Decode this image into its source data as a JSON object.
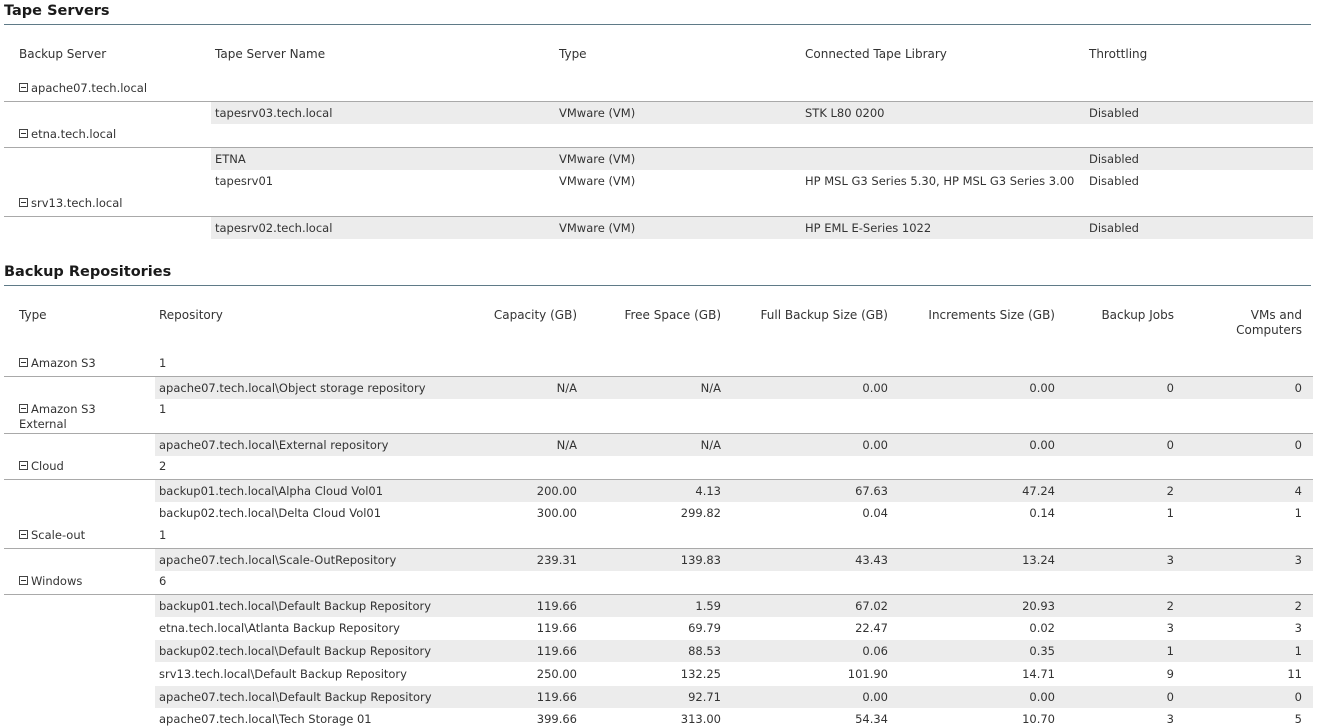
{
  "tape": {
    "title": "Tape Servers",
    "headers": [
      "Backup Server",
      "Tape Server Name",
      "Type",
      "Connected Tape Library",
      "Throttling"
    ],
    "groups": [
      {
        "name": "apache07.tech.local",
        "rows": [
          {
            "name": "tapesrv03.tech.local",
            "type": "VMware (VM)",
            "library": "STK L80 0200",
            "throttling": "Disabled"
          }
        ]
      },
      {
        "name": "etna.tech.local",
        "rows": [
          {
            "name": "ETNA",
            "type": "VMware (VM)",
            "library": "",
            "throttling": "Disabled"
          },
          {
            "name": "tapesrv01",
            "type": "VMware (VM)",
            "library": "HP MSL G3 Series 5.30, HP MSL G3 Series 3.00",
            "throttling": "Disabled"
          }
        ]
      },
      {
        "name": "srv13.tech.local",
        "rows": [
          {
            "name": "tapesrv02.tech.local",
            "type": "VMware (VM)",
            "library": "HP EML E-Series 1022",
            "throttling": "Disabled"
          }
        ]
      }
    ]
  },
  "repos": {
    "title": "Backup Repositories",
    "headers": {
      "type": "Type",
      "repository": "Repository",
      "capacity": "Capacity (GB)",
      "free": "Free Space (GB)",
      "full": "Full Backup Size (GB)",
      "inc": "Increments Size (GB)",
      "jobs": "Backup Jobs",
      "vms_line1": "VMs and",
      "vms_line2": "Computers"
    },
    "groups": [
      {
        "name_line1": "Amazon S3",
        "name_line2": "",
        "count": "1",
        "rows": [
          {
            "repo": "apache07.tech.local\\Object storage repository",
            "capacity": "N/A",
            "free": "N/A",
            "full": "0.00",
            "inc": "0.00",
            "jobs": "0",
            "vms": "0"
          }
        ]
      },
      {
        "name_line1": "Amazon S3",
        "name_line2": "External",
        "count": "1",
        "rows": [
          {
            "repo": "apache07.tech.local\\External repository",
            "capacity": "N/A",
            "free": "N/A",
            "full": "0.00",
            "inc": "0.00",
            "jobs": "0",
            "vms": "0"
          }
        ]
      },
      {
        "name_line1": "Cloud",
        "name_line2": "",
        "count": "2",
        "rows": [
          {
            "repo": "backup01.tech.local\\Alpha Cloud Vol01",
            "capacity": "200.00",
            "free": "4.13",
            "full": "67.63",
            "inc": "47.24",
            "jobs": "2",
            "vms": "4"
          },
          {
            "repo": "backup02.tech.local\\Delta Cloud Vol01",
            "capacity": "300.00",
            "free": "299.82",
            "full": "0.04",
            "inc": "0.14",
            "jobs": "1",
            "vms": "1"
          }
        ]
      },
      {
        "name_line1": "Scale-out",
        "name_line2": "",
        "count": "1",
        "rows": [
          {
            "repo": "apache07.tech.local\\Scale-OutRepository",
            "capacity": "239.31",
            "free": "139.83",
            "full": "43.43",
            "inc": "13.24",
            "jobs": "3",
            "vms": "3"
          }
        ]
      },
      {
        "name_line1": "Windows",
        "name_line2": "",
        "count": "6",
        "rows": [
          {
            "repo": "backup01.tech.local\\Default Backup Repository",
            "capacity": "119.66",
            "free": "1.59",
            "full": "67.02",
            "inc": "20.93",
            "jobs": "2",
            "vms": "2"
          },
          {
            "repo": "etna.tech.local\\Atlanta Backup Repository",
            "capacity": "119.66",
            "free": "69.79",
            "full": "22.47",
            "inc": "0.02",
            "jobs": "3",
            "vms": "3"
          },
          {
            "repo": "backup02.tech.local\\Default Backup Repository",
            "capacity": "119.66",
            "free": "88.53",
            "full": "0.06",
            "inc": "0.35",
            "jobs": "1",
            "vms": "1"
          },
          {
            "repo": "srv13.tech.local\\Default Backup Repository",
            "capacity": "250.00",
            "free": "132.25",
            "full": "101.90",
            "inc": "14.71",
            "jobs": "9",
            "vms": "11"
          },
          {
            "repo": "apache07.tech.local\\Default Backup Repository",
            "capacity": "119.66",
            "free": "92.71",
            "full": "0.00",
            "inc": "0.00",
            "jobs": "0",
            "vms": "0"
          },
          {
            "repo": "apache07.tech.local\\Tech Storage 01",
            "capacity": "399.66",
            "free": "313.00",
            "full": "54.34",
            "inc": "10.70",
            "jobs": "3",
            "vms": "5"
          }
        ]
      }
    ]
  }
}
